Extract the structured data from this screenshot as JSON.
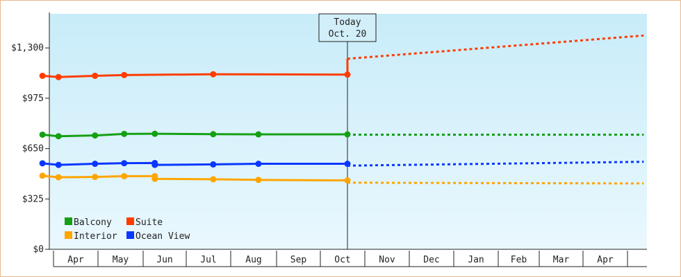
{
  "chart_data": {
    "type": "line",
    "ylim": [
      0,
      1520
    ],
    "y_ticks": [
      {
        "value": 0,
        "label": "$0"
      },
      {
        "value": 325,
        "label": "$325"
      },
      {
        "value": 650,
        "label": "$650"
      },
      {
        "value": 975,
        "label": "$975"
      },
      {
        "value": 1300,
        "label": "$1,300"
      }
    ],
    "x_ticks": [
      "Apr",
      "May",
      "Jun",
      "Jul",
      "Aug",
      "Sep",
      "Oct",
      "Nov",
      "Dec",
      "Jan",
      "Feb",
      "Mar",
      "Apr"
    ],
    "today": {
      "line1": "Today",
      "line2": "Oct. 20"
    },
    "legend": [
      {
        "name": "Balcony",
        "color": "#14a014"
      },
      {
        "name": "Suite",
        "color": "#ff3c00"
      },
      {
        "name": "Interior",
        "color": "#ffa500"
      },
      {
        "name": "Ocean View",
        "color": "#0a37ff"
      }
    ],
    "grid": false,
    "legend_position": "bottom-left",
    "series": [
      {
        "name": "Suite",
        "color": "#ff3c00",
        "history": [
          {
            "date": "2023-03-25",
            "value": 1120
          },
          {
            "date": "2023-04-05",
            "value": 1112
          },
          {
            "date": "2023-04-30",
            "value": 1120
          },
          {
            "date": "2023-05-20",
            "value": 1125
          },
          {
            "date": "2023-07-20",
            "value": 1130
          },
          {
            "date": "2023-10-20",
            "value": 1128
          }
        ],
        "forecast": [
          {
            "date": "2023-10-20",
            "value": 1230
          },
          {
            "date": "2024-05-10",
            "value": 1380
          }
        ]
      },
      {
        "name": "Balcony",
        "color": "#14a014",
        "history": [
          {
            "date": "2023-03-25",
            "value": 740
          },
          {
            "date": "2023-04-05",
            "value": 730
          },
          {
            "date": "2023-04-30",
            "value": 735
          },
          {
            "date": "2023-05-20",
            "value": 745
          },
          {
            "date": "2023-06-10",
            "value": 746
          },
          {
            "date": "2023-07-20",
            "value": 743
          },
          {
            "date": "2023-08-20",
            "value": 742
          },
          {
            "date": "2023-10-20",
            "value": 742
          }
        ],
        "forecast": [
          {
            "date": "2023-10-20",
            "value": 740
          },
          {
            "date": "2024-05-10",
            "value": 740
          }
        ]
      },
      {
        "name": "Ocean View",
        "color": "#0a37ff",
        "history": [
          {
            "date": "2023-03-25",
            "value": 555
          },
          {
            "date": "2023-04-05",
            "value": 545
          },
          {
            "date": "2023-04-30",
            "value": 552
          },
          {
            "date": "2023-05-20",
            "value": 556
          },
          {
            "date": "2023-06-10",
            "value": 557
          },
          {
            "date": "2023-06-10",
            "value": 545
          },
          {
            "date": "2023-07-20",
            "value": 548
          },
          {
            "date": "2023-08-20",
            "value": 552
          },
          {
            "date": "2023-10-20",
            "value": 552
          }
        ],
        "forecast": [
          {
            "date": "2023-10-20",
            "value": 540
          },
          {
            "date": "2024-05-10",
            "value": 565
          }
        ]
      },
      {
        "name": "Interior",
        "color": "#ffa500",
        "history": [
          {
            "date": "2023-03-25",
            "value": 475
          },
          {
            "date": "2023-04-05",
            "value": 465
          },
          {
            "date": "2023-04-30",
            "value": 467
          },
          {
            "date": "2023-05-20",
            "value": 472
          },
          {
            "date": "2023-06-10",
            "value": 472
          },
          {
            "date": "2023-06-10",
            "value": 455
          },
          {
            "date": "2023-07-20",
            "value": 452
          },
          {
            "date": "2023-08-20",
            "value": 448
          },
          {
            "date": "2023-10-20",
            "value": 445
          }
        ],
        "forecast": [
          {
            "date": "2023-10-20",
            "value": 430
          },
          {
            "date": "2024-05-10",
            "value": 425
          }
        ]
      }
    ]
  }
}
